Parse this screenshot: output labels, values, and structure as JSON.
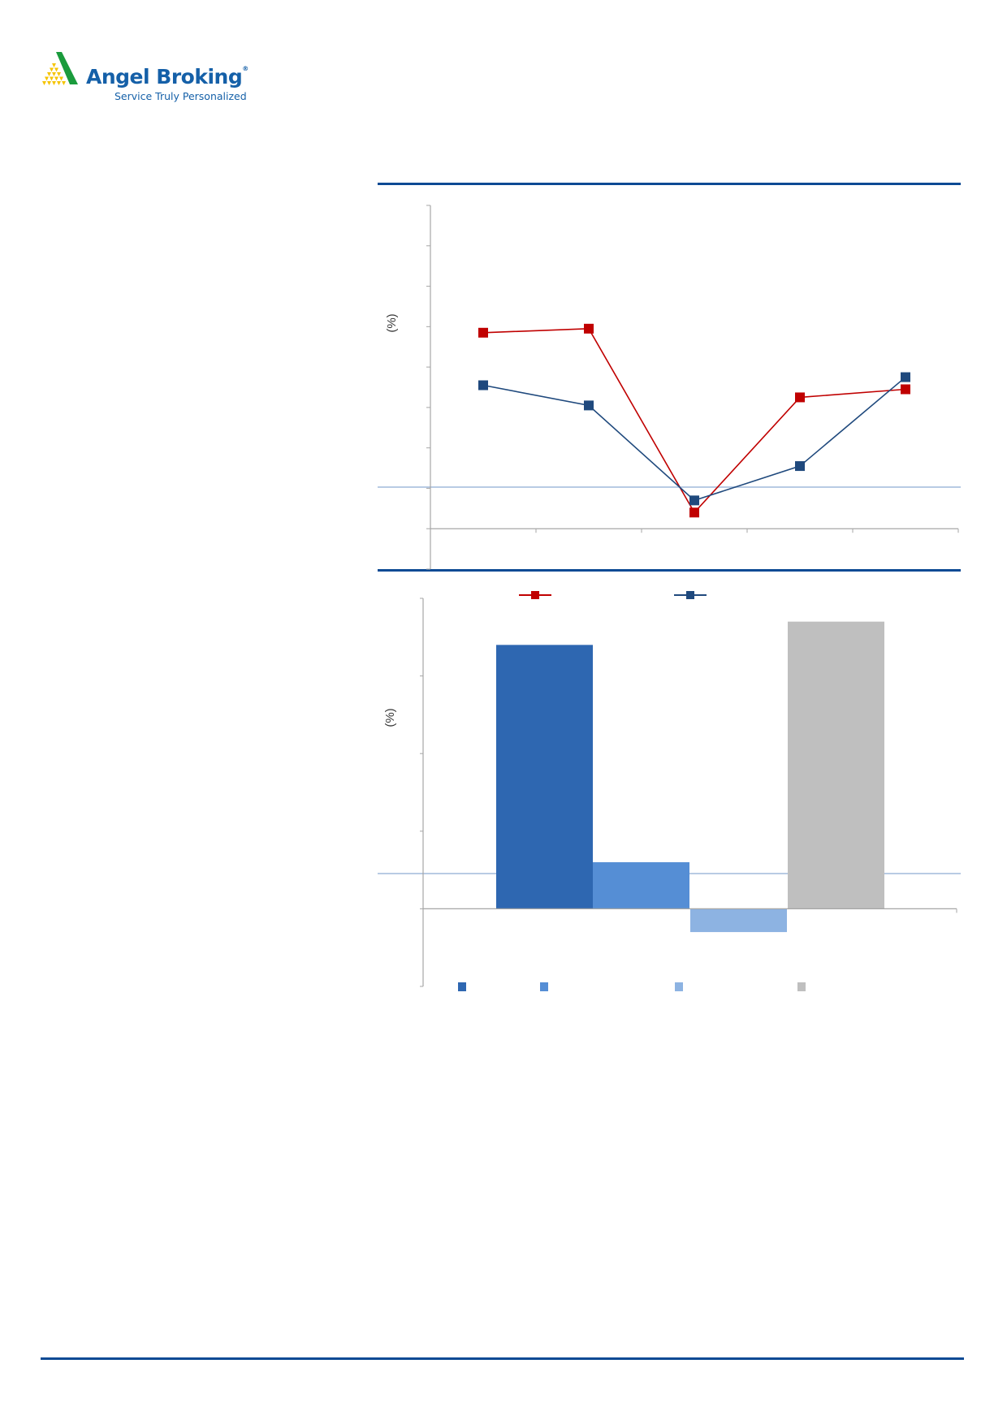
{
  "header": {
    "brand": "Angel Broking",
    "registered_mark": "®",
    "tagline": "Service Truly Personalized"
  },
  "colors": {
    "rule": "#0d4a94",
    "rule_light": "#b8cbe4",
    "logo_green": "#1a9b3c",
    "logo_yellow": "#f5c400"
  },
  "chart_data": [
    {
      "type": "line",
      "ylabel": "(%)",
      "ylim": [
        -1,
        8
      ],
      "grid": false,
      "legend": "bottom",
      "categories": [
        "",
        "",
        "",
        "",
        ""
      ],
      "series": [
        {
          "color": "#c00000",
          "marker": "square",
          "values": [
            4.85,
            4.95,
            0.4,
            3.25,
            3.45
          ]
        },
        {
          "color": "#1f497d",
          "marker": "square",
          "values": [
            3.55,
            3.05,
            0.7,
            1.55,
            3.75
          ]
        }
      ]
    },
    {
      "type": "bar",
      "ylabel": "(%)",
      "ylim": [
        -1,
        4
      ],
      "grid": false,
      "legend": "bottom",
      "categories": [
        ""
      ],
      "series": [
        {
          "color": "#2e67b1",
          "values": [
            3.4
          ]
        },
        {
          "color": "#558ed5",
          "values": [
            0.6
          ]
        },
        {
          "color": "#8db3e2",
          "values": [
            -0.3
          ]
        },
        {
          "color": "#bfbfbf",
          "values": [
            3.7
          ]
        }
      ]
    }
  ]
}
